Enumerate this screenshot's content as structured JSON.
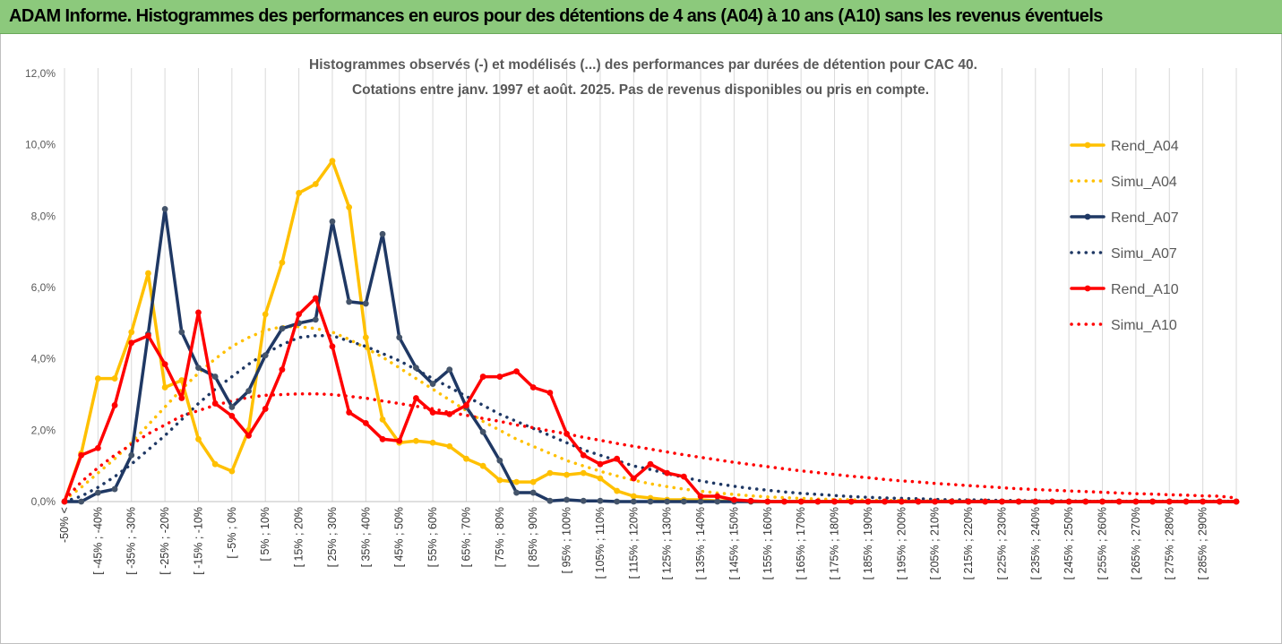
{
  "header": {
    "title": "ADAM Informe. Histogrammes des performances en euros pour des détentions de 4 ans (A04) à 10 ans (A10) sans les revenus éventuels"
  },
  "chart_data": {
    "type": "line",
    "title_lines": [
      "Histogrammes observés (-) et modélisés (...) des performances par durées de détention pour CAC 40.",
      "Cotations entre janv. 1997 et août. 2025. Pas de revenus disponibles ou pris en compte."
    ],
    "xlabel": "",
    "ylabel": "",
    "ylim": [
      0,
      12
    ],
    "y_ticks": [
      "0,0%",
      "2,0%",
      "4,0%",
      "6,0%",
      "8,0%",
      "10,0%",
      "12,0%"
    ],
    "grid": "vertical",
    "legend_position": "right",
    "x_tick_labels": [
      "-50% <",
      "[ -45% ; -40%",
      "[ -35% ; -30%",
      "[ -25% ; -20%",
      "[ -15% ; -10%",
      "[ -5% ; 0%",
      "[ 5% ; 10%",
      "[ 15% ; 20%",
      "[ 25% ; 30%",
      "[ 35% ; 40%",
      "[ 45% ; 50%",
      "[ 55% ; 60%",
      "[ 65% ; 70%",
      "[ 75% ; 80%",
      "[ 85% ; 90%",
      "[ 95% ; 100%",
      "[ 105% ; 110%",
      "[ 115% ; 120%",
      "[ 125% ; 130%",
      "[ 135% ; 140%",
      "[ 145% ; 150%",
      "[ 155% ; 160%",
      "[ 165% ; 170%",
      "[ 175% ; 180%",
      "[ 185% ; 190%",
      "[ 195% ; 200%",
      "[ 205% ; 210%",
      "[ 215% ; 220%",
      "[ 225% ; 230%",
      "[ 235% ; 240%",
      "[ 245% ; 250%",
      "[ 255% ; 260%",
      "[ 265% ; 270%",
      "[ 275% ; 280%",
      "[ 285% ; 290%"
    ],
    "series": [
      {
        "name": "Rend_A04",
        "color": "#ffc000",
        "style": "solid",
        "values": [
          0,
          1.35,
          3.45,
          3.45,
          4.75,
          6.4,
          3.2,
          3.4,
          1.75,
          1.05,
          0.85,
          2.0,
          5.25,
          6.7,
          8.65,
          8.9,
          9.55,
          8.25,
          4.6,
          2.3,
          1.65,
          1.7,
          1.65,
          1.55,
          1.2,
          1.0,
          0.6,
          0.55,
          0.55,
          0.8,
          0.75,
          0.8,
          0.65,
          0.3,
          0.15,
          0.1,
          0.05,
          0.05,
          0.05,
          0.02,
          0.02,
          0,
          0,
          0,
          0,
          0,
          0,
          0,
          0,
          0,
          0,
          0,
          0,
          0,
          0,
          0,
          0,
          0,
          0,
          0,
          0,
          0,
          0,
          0,
          0,
          0,
          0,
          0,
          0,
          0,
          0
        ]
      },
      {
        "name": "Simu_A04",
        "color": "#ffc000",
        "style": "dotted",
        "values": [
          0.05,
          0.4,
          0.8,
          1.2,
          1.65,
          2.15,
          2.65,
          3.15,
          3.6,
          4.0,
          4.35,
          4.6,
          4.8,
          4.9,
          4.9,
          4.85,
          4.75,
          4.55,
          4.3,
          4.05,
          3.75,
          3.45,
          3.15,
          2.85,
          2.55,
          2.25,
          2.0,
          1.75,
          1.55,
          1.35,
          1.15,
          1.0,
          0.85,
          0.72,
          0.6,
          0.5,
          0.42,
          0.35,
          0.29,
          0.24,
          0.2,
          0.16,
          0.13,
          0.11,
          0.09,
          0.07,
          0.06,
          0.05,
          0.04,
          0.03,
          0.03,
          0.02,
          0.02,
          0.02,
          0.01,
          0.01,
          0.01,
          0.01,
          0.01,
          0.01,
          0.01,
          0.01,
          0.01,
          0.01,
          0.01,
          0.01,
          0.01,
          0.01,
          0.01,
          0.01,
          0.01
        ]
      },
      {
        "name": "Rend_A07",
        "color": "#1f3864",
        "style": "solid",
        "values": [
          0,
          0,
          0.25,
          0.35,
          1.3,
          4.7,
          8.2,
          4.75,
          3.75,
          3.5,
          2.65,
          3.1,
          4.1,
          4.85,
          5.0,
          5.1,
          7.85,
          5.6,
          5.55,
          7.5,
          4.6,
          3.75,
          3.3,
          3.7,
          2.65,
          1.95,
          1.15,
          0.25,
          0.25,
          0.02,
          0.05,
          0.02,
          0.02,
          0,
          0,
          0,
          0,
          0,
          0,
          0,
          0,
          0,
          0,
          0,
          0,
          0,
          0,
          0,
          0,
          0,
          0,
          0,
          0,
          0,
          0,
          0,
          0,
          0,
          0,
          0,
          0,
          0,
          0,
          0,
          0,
          0,
          0,
          0,
          0,
          0,
          0
        ]
      },
      {
        "name": "Simu_A07",
        "color": "#1f3864",
        "style": "dotted",
        "values": [
          0,
          0.15,
          0.4,
          0.7,
          1.05,
          1.45,
          1.85,
          2.3,
          2.75,
          3.15,
          3.5,
          3.85,
          4.15,
          4.4,
          4.6,
          4.65,
          4.65,
          4.5,
          4.35,
          4.15,
          3.95,
          3.7,
          3.45,
          3.2,
          2.95,
          2.7,
          2.45,
          2.25,
          2.05,
          1.85,
          1.65,
          1.45,
          1.3,
          1.15,
          1.0,
          0.9,
          0.78,
          0.68,
          0.58,
          0.5,
          0.43,
          0.37,
          0.32,
          0.27,
          0.23,
          0.2,
          0.17,
          0.14,
          0.12,
          0.1,
          0.09,
          0.08,
          0.06,
          0.05,
          0.05,
          0.04,
          0.03,
          0.03,
          0.02,
          0.02,
          0.02,
          0.01,
          0.01,
          0.01,
          0.01,
          0.01,
          0.01,
          0.01,
          0.01,
          0.01,
          0.01
        ]
      },
      {
        "name": "Rend_A10",
        "color": "#ff0000",
        "style": "solid",
        "values": [
          0,
          1.3,
          1.5,
          2.7,
          4.45,
          4.65,
          3.85,
          2.9,
          5.3,
          2.75,
          2.4,
          1.85,
          2.6,
          3.7,
          5.25,
          5.7,
          4.35,
          2.5,
          2.2,
          1.75,
          1.7,
          2.9,
          2.5,
          2.45,
          2.7,
          3.5,
          3.5,
          3.65,
          3.2,
          3.05,
          1.9,
          1.3,
          1.05,
          1.2,
          0.65,
          1.05,
          0.8,
          0.7,
          0.15,
          0.15,
          0.05,
          0.02,
          0,
          0,
          0,
          0,
          0,
          0,
          0,
          0,
          0,
          0,
          0,
          0,
          0,
          0,
          0,
          0,
          0,
          0,
          0,
          0,
          0,
          0,
          0,
          0,
          0,
          0,
          0,
          0,
          0
        ]
      },
      {
        "name": "Simu_A10",
        "color": "#ff0000",
        "style": "dotted",
        "values": [
          0.05,
          0.55,
          0.95,
          1.3,
          1.6,
          1.9,
          2.15,
          2.4,
          2.55,
          2.7,
          2.82,
          2.92,
          2.98,
          3.0,
          3.02,
          3.02,
          3.0,
          2.95,
          2.9,
          2.82,
          2.75,
          2.67,
          2.6,
          2.5,
          2.42,
          2.33,
          2.25,
          2.15,
          2.07,
          1.98,
          1.9,
          1.8,
          1.72,
          1.63,
          1.55,
          1.47,
          1.39,
          1.31,
          1.24,
          1.17,
          1.1,
          1.04,
          0.98,
          0.92,
          0.86,
          0.81,
          0.76,
          0.71,
          0.67,
          0.62,
          0.58,
          0.55,
          0.51,
          0.48,
          0.45,
          0.42,
          0.39,
          0.36,
          0.34,
          0.32,
          0.3,
          0.28,
          0.26,
          0.24,
          0.22,
          0.21,
          0.19,
          0.18,
          0.16,
          0.15,
          0.1
        ]
      }
    ]
  }
}
